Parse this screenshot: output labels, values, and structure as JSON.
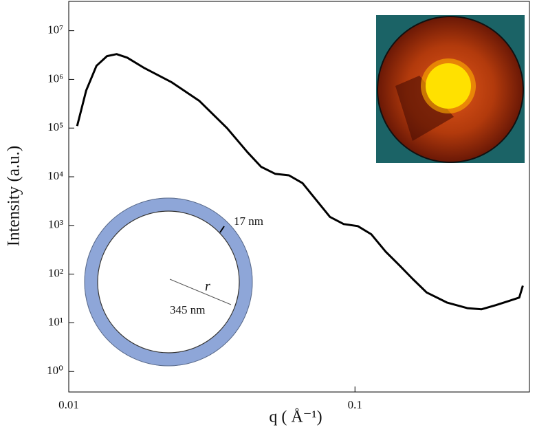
{
  "chart_data": {
    "type": "line",
    "x_label": "q ( Å⁻¹)",
    "y_label": "Intensity (a.u.)",
    "x": [
      0.0107,
      0.0115,
      0.0125,
      0.0136,
      0.0147,
      0.016,
      0.0184,
      0.0229,
      0.0286,
      0.0357,
      0.0421,
      0.047,
      0.0526,
      0.0588,
      0.0656,
      0.0733,
      0.0818,
      0.0913,
      0.1023,
      0.114,
      0.128,
      0.143,
      0.159,
      0.178,
      0.21,
      0.247,
      0.277,
      0.31,
      0.344,
      0.375,
      0.386
    ],
    "values": [
      110000,
      590000,
      1900000,
      3000000,
      3300000,
      2800000,
      1700000,
      870000,
      360000,
      100000,
      32000,
      16000,
      11500,
      10700,
      7400,
      3300,
      1500,
      1070,
      970,
      660,
      290,
      152,
      80,
      42,
      26,
      20,
      19,
      23,
      28,
      33,
      58
    ],
    "color": "#000000",
    "x_log": true,
    "y_log": true,
    "xlim": [
      0.01,
      0.407
    ],
    "ylim": [
      0.38,
      40000000
    ],
    "xticks": [
      0.01,
      0.1
    ],
    "yticks": [
      {
        "value": 1,
        "label": "10⁰"
      },
      {
        "value": 10,
        "label": "10¹"
      },
      {
        "value": 100,
        "label": "10²"
      },
      {
        "value": 1000,
        "label": "10³"
      },
      {
        "value": 10000,
        "label": "10⁴"
      },
      {
        "value": 100000,
        "label": "10⁵"
      },
      {
        "value": 1000000,
        "label": "10⁶"
      },
      {
        "value": 10000000,
        "label": "10⁷"
      }
    ],
    "annotations": [
      "17 nm",
      "r",
      "345 nm"
    ]
  }
}
